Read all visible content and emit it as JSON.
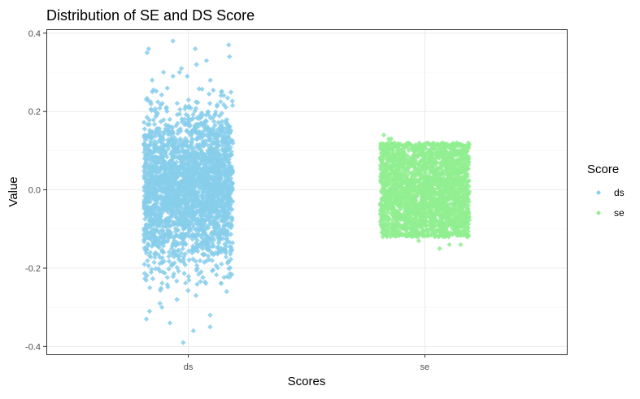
{
  "chart_data": {
    "type": "scatter",
    "title": "Distribution of SE and DS Score",
    "xlabel": "Scores",
    "ylabel": "Value",
    "categories": [
      "ds",
      "se"
    ],
    "ylim": [
      -0.42,
      0.41
    ],
    "yticks": [
      -0.4,
      -0.2,
      0.0,
      0.2,
      0.4
    ],
    "ytick_labels": [
      "-0.4",
      "-0.2",
      "0.0",
      "0.2",
      "0.4"
    ],
    "grid": true,
    "legend": {
      "title": "Score",
      "placement": "right",
      "entries": [
        "ds",
        "se"
      ]
    },
    "series": [
      {
        "name": "ds",
        "category": "ds",
        "color": "#87CEEB",
        "central_range": [
          -0.2,
          0.2
        ],
        "extreme_points": [
          0.38,
          0.37,
          0.36,
          0.36,
          0.35,
          0.34,
          0.33,
          0.32,
          0.31,
          0.3,
          0.3,
          0.29,
          0.29,
          0.28,
          0.28,
          -0.25,
          -0.27,
          -0.28,
          -0.29,
          -0.3,
          -0.31,
          -0.32,
          -0.33,
          -0.34,
          -0.35,
          -0.36,
          -0.39
        ]
      },
      {
        "name": "se",
        "category": "se",
        "color": "#90EE90",
        "central_range": [
          -0.12,
          0.12
        ],
        "extreme_points": [
          0.14,
          0.13,
          0.13,
          0.12,
          -0.13,
          -0.14,
          -0.14,
          -0.15
        ]
      }
    ]
  }
}
